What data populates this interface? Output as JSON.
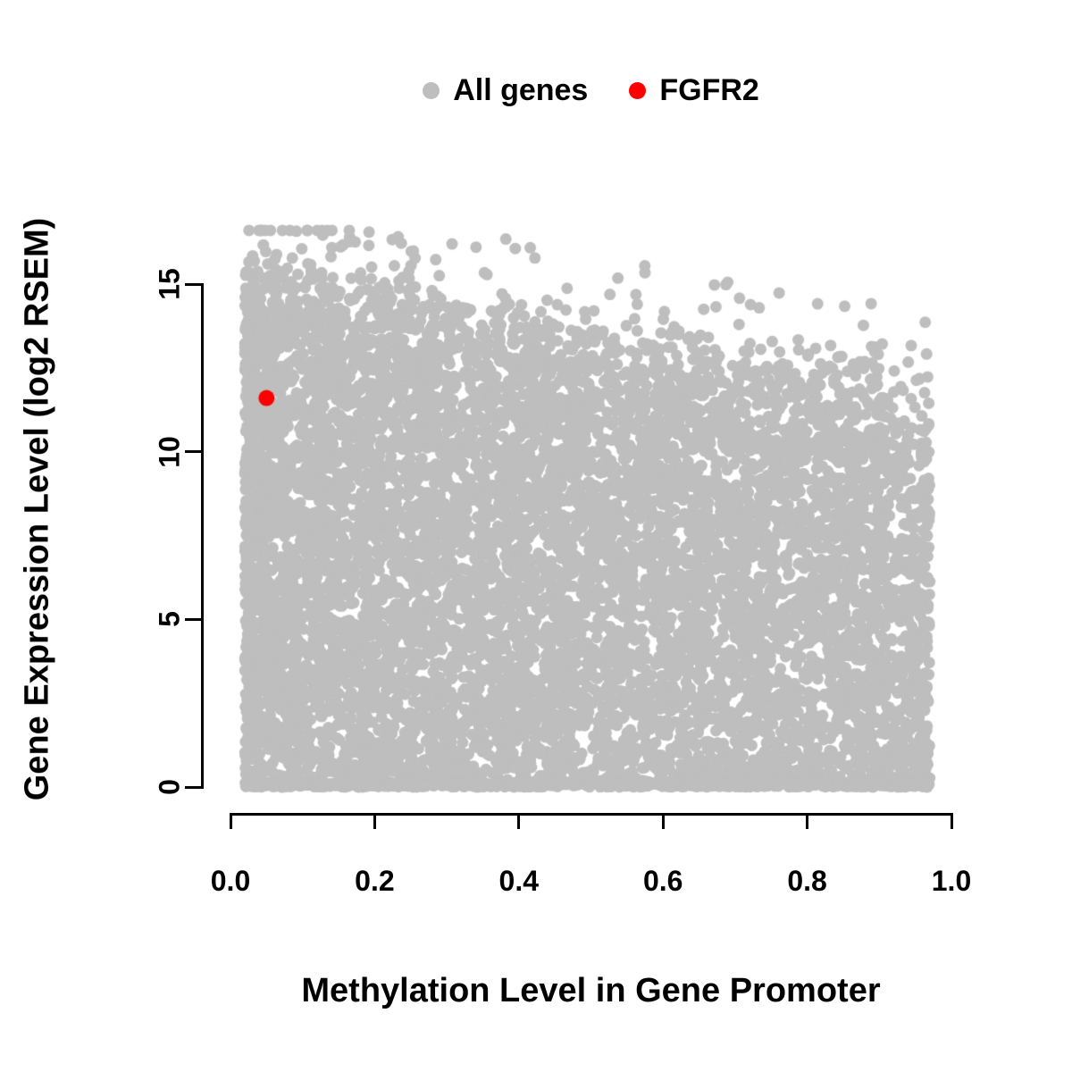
{
  "chart_data": {
    "type": "scatter",
    "title": "",
    "xlabel": "Methylation Level in Gene Promoter",
    "ylabel": "Gene Expression Level (log2 RSEM)",
    "xlim": [
      0.0,
      1.0
    ],
    "ylim": [
      0,
      15
    ],
    "grid": false,
    "x_tick_labels": [
      "0.0",
      "0.2",
      "0.4",
      "0.6",
      "0.8",
      "1.0"
    ],
    "x_tick_values": [
      0.0,
      0.2,
      0.4,
      0.6,
      0.8,
      1.0
    ],
    "y_tick_labels": [
      "0",
      "5",
      "10",
      "15"
    ],
    "y_tick_values": [
      0,
      5,
      10,
      15
    ],
    "legend_position": "top-center",
    "legend": [
      {
        "label": "All genes",
        "color": "#bebebe"
      },
      {
        "label": "FGFR2",
        "color": "#ff0000"
      }
    ],
    "series": [
      {
        "name": "All genes",
        "color": "#bebebe",
        "render": "dense_cloud",
        "n_points": 9000,
        "n_outliers": 170,
        "n_zero_band": 700,
        "x_range": [
          0.02,
          0.97
        ],
        "y_range": [
          0,
          16.6
        ],
        "envelope": {
          "intercept": 15.2,
          "slope": -3.8,
          "jitter": 1.0
        },
        "x_skew": 1.25,
        "seed": 42,
        "point_radius_px": 6.5
      },
      {
        "name": "FGFR2",
        "color": "#ff0000",
        "render": "points",
        "points": [
          [
            0.05,
            11.6
          ]
        ],
        "point_radius_px": 9
      }
    ]
  }
}
